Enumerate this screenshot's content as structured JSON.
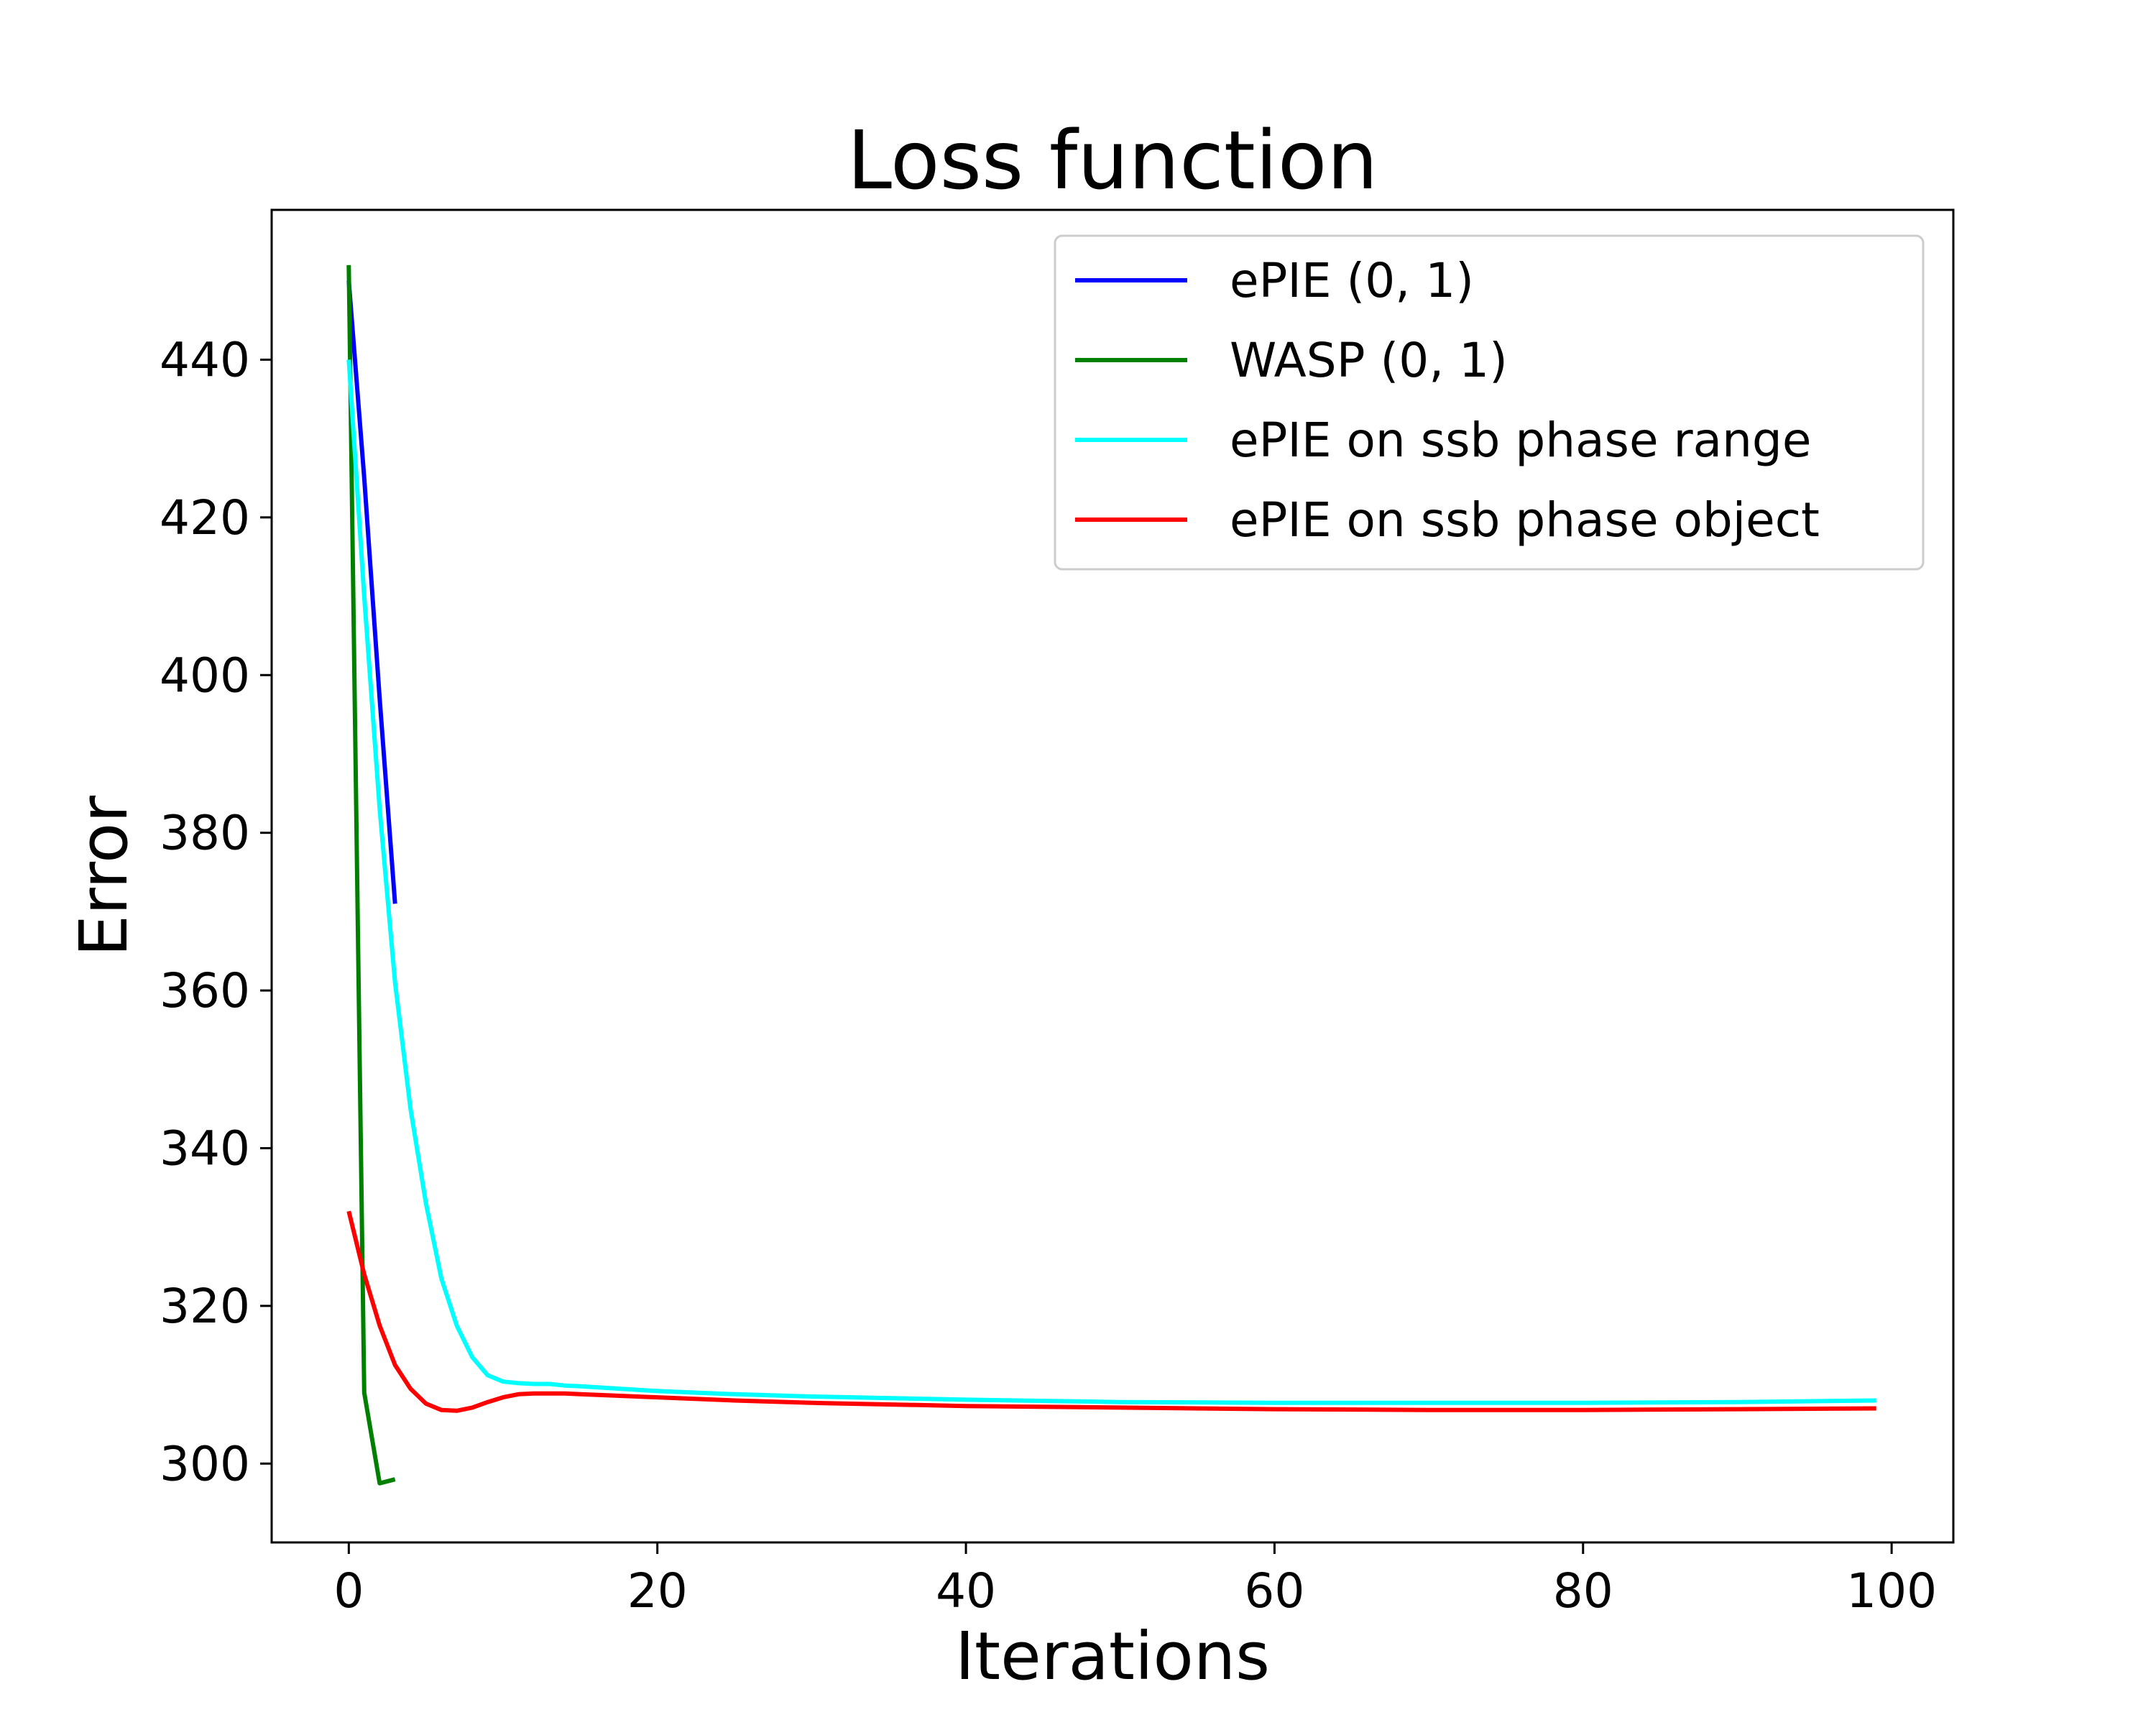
{
  "chart_data": {
    "type": "line",
    "title": "Loss function",
    "xlabel": "Iterations",
    "ylabel": "Error",
    "xlim": [
      -5,
      104
    ],
    "ylim": [
      290,
      459
    ],
    "xticks": [
      0,
      20,
      40,
      60,
      80,
      100
    ],
    "yticks": [
      300,
      320,
      340,
      360,
      380,
      400,
      420,
      440
    ],
    "grid": false,
    "legend_position": "top-right",
    "series": [
      {
        "name": "ePIE (0, 1)",
        "color": "#0000ff",
        "x": [
          0,
          1,
          2,
          3
        ],
        "y": [
          450,
          425,
          397,
          371
        ]
      },
      {
        "name": "WASP (0, 1)",
        "color": "#008000",
        "x": [
          0,
          1,
          2,
          3
        ],
        "y": [
          452,
          309,
          297.5,
          298
        ]
      },
      {
        "name": "ePIE on ssb phase range",
        "color": "#00ffff",
        "x": [
          0,
          1,
          2,
          3,
          4,
          5,
          6,
          7,
          8,
          9,
          10,
          11,
          12,
          13,
          14,
          15,
          20,
          25,
          30,
          40,
          50,
          60,
          70,
          80,
          90,
          99
        ],
        "y": [
          440,
          410,
          383,
          361,
          345,
          333,
          323.5,
          317.5,
          313.5,
          311.2,
          310.4,
          310.2,
          310.1,
          310.1,
          309.9,
          309.8,
          309.2,
          308.8,
          308.5,
          308.1,
          307.8,
          307.7,
          307.7,
          307.7,
          307.8,
          308
        ]
      },
      {
        "name": "ePIE on ssb phase object",
        "color": "#ff0000",
        "x": [
          0,
          1,
          2,
          3,
          4,
          5,
          6,
          7,
          8,
          9,
          10,
          11,
          12,
          13,
          14,
          15,
          20,
          25,
          30,
          40,
          50,
          60,
          70,
          80,
          90,
          99
        ],
        "y": [
          332,
          324,
          317.5,
          312.5,
          309.5,
          307.6,
          306.8,
          306.7,
          307.1,
          307.8,
          308.4,
          308.8,
          308.9,
          308.9,
          308.9,
          308.8,
          308.4,
          308,
          307.7,
          307.3,
          307.1,
          306.9,
          306.8,
          306.8,
          306.9,
          307
        ]
      }
    ]
  }
}
